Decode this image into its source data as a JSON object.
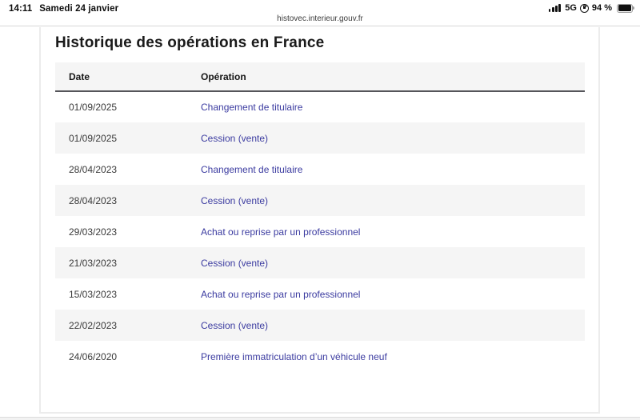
{
  "status_bar": {
    "time": "14:11",
    "date": "Samedi 24 janvier",
    "network": "5G",
    "battery_percent": "94 %"
  },
  "browser": {
    "url": "histovec.interieur.gouv.fr"
  },
  "page": {
    "title": "Historique des opérations en France",
    "table": {
      "columns": [
        "Date",
        "Opération"
      ],
      "rows": [
        {
          "date": "01/09/2025",
          "operation": "Changement de titulaire"
        },
        {
          "date": "01/09/2025",
          "operation": "Cession (vente)"
        },
        {
          "date": "28/04/2023",
          "operation": "Changement de titulaire"
        },
        {
          "date": "28/04/2023",
          "operation": "Cession (vente)"
        },
        {
          "date": "29/03/2023",
          "operation": "Achat ou reprise par un professionnel"
        },
        {
          "date": "21/03/2023",
          "operation": "Cession (vente)"
        },
        {
          "date": "15/03/2023",
          "operation": "Achat ou reprise par un professionnel"
        },
        {
          "date": "22/02/2023",
          "operation": "Cession (vente)"
        },
        {
          "date": "24/06/2020",
          "operation": "Première immatriculation d’un véhicule neuf"
        }
      ]
    }
  },
  "colors": {
    "link_color": "#3b3ba0",
    "row_alt": "#f5f5f5",
    "header_border": "#55555a",
    "card_border": "#ececec",
    "text_dark": "#3a3a3a",
    "title_color": "#1a1a1a"
  }
}
